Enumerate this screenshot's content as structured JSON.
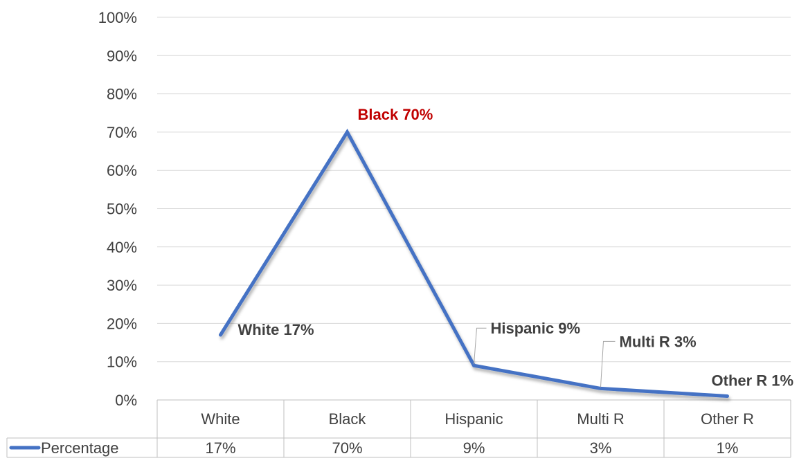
{
  "chart_data": {
    "type": "line",
    "categories": [
      "White",
      "Black",
      "Hispanic",
      "Multi R",
      "Other R"
    ],
    "series": [
      {
        "name": "Percentage",
        "values": [
          17,
          70,
          9,
          3,
          1
        ],
        "color": "#4472C4",
        "table_values": [
          "17%",
          "70%",
          "9%",
          "3%",
          "1%"
        ]
      }
    ],
    "data_labels": [
      "White 17%",
      "Black 70%",
      "Hispanic 9%",
      "Multi R 3%",
      "Other R 1%"
    ],
    "highlight_color": "#C00000",
    "highlight_index": 1,
    "ylim": [
      0,
      100
    ],
    "yticks": [
      "0%",
      "10%",
      "20%",
      "30%",
      "40%",
      "50%",
      "60%",
      "70%",
      "80%",
      "90%",
      "100%"
    ],
    "ytick_values": [
      0,
      10,
      20,
      30,
      40,
      50,
      60,
      70,
      80,
      90,
      100
    ],
    "grid": true,
    "legend": "data-table",
    "title": "",
    "xlabel": "",
    "ylabel": ""
  }
}
